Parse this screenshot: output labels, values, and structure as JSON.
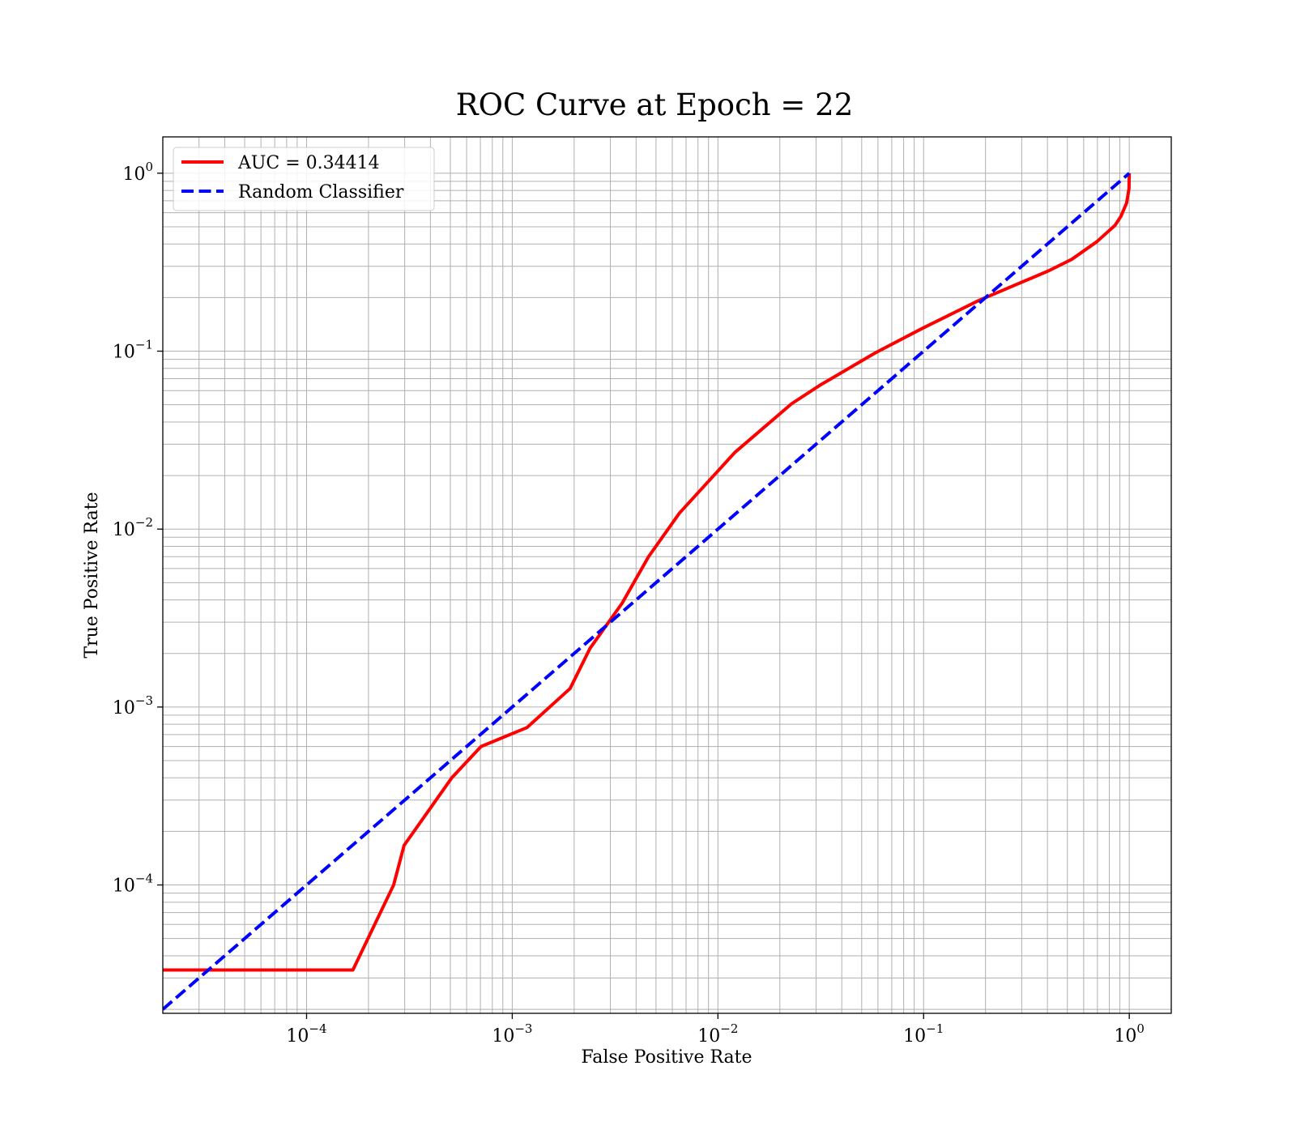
{
  "chart_data": {
    "type": "line",
    "title": "ROC Curve at Epoch = 22",
    "xlabel": "False Positive Rate",
    "ylabel": "True Positive Rate",
    "xscale": "log",
    "yscale": "log",
    "xlim": [
      2e-05,
      1.6
    ],
    "ylim": [
      1.9e-05,
      1.6
    ],
    "grid": true,
    "grid_minor": true,
    "legend_position": "upper left",
    "x_ticks": [
      {
        "value": 0.0001,
        "base": "10",
        "exp": "−4"
      },
      {
        "value": 0.001,
        "base": "10",
        "exp": "−3"
      },
      {
        "value": 0.01,
        "base": "10",
        "exp": "−2"
      },
      {
        "value": 0.1,
        "base": "10",
        "exp": "−1"
      },
      {
        "value": 1,
        "base": "10",
        "exp": "0"
      }
    ],
    "y_ticks": [
      {
        "value": 0.0001,
        "base": "10",
        "exp": "−4"
      },
      {
        "value": 0.001,
        "base": "10",
        "exp": "−3"
      },
      {
        "value": 0.01,
        "base": "10",
        "exp": "−2"
      },
      {
        "value": 0.1,
        "base": "10",
        "exp": "−1"
      },
      {
        "value": 1,
        "base": "10",
        "exp": "0"
      }
    ],
    "series": [
      {
        "name": "AUC = 0.34414",
        "color": "#ff0000",
        "style": "solid",
        "x": [
          2e-05,
          0.000168,
          0.000265,
          0.000298,
          0.000508,
          0.000705,
          0.00118,
          0.00191,
          0.00239,
          0.00342,
          0.0046,
          0.0065,
          0.0121,
          0.0228,
          0.0313,
          0.058,
          0.097,
          0.186,
          0.406,
          0.525,
          0.695,
          0.853,
          0.911,
          0.971,
          0.997,
          1.0
        ],
        "y": [
          3.33e-05,
          3.33e-05,
          0.0001,
          0.000167,
          0.0004,
          0.0006,
          0.000767,
          0.00127,
          0.00214,
          0.00383,
          0.007,
          0.0123,
          0.027,
          0.0506,
          0.0643,
          0.0976,
          0.133,
          0.193,
          0.283,
          0.328,
          0.412,
          0.51,
          0.573,
          0.681,
          0.82,
          1.0
        ]
      },
      {
        "name": "Random Classifier",
        "color": "#0000ff",
        "style": "dashed",
        "x": [
          2e-05,
          1.0
        ],
        "y": [
          2e-05,
          1.0
        ]
      }
    ]
  }
}
